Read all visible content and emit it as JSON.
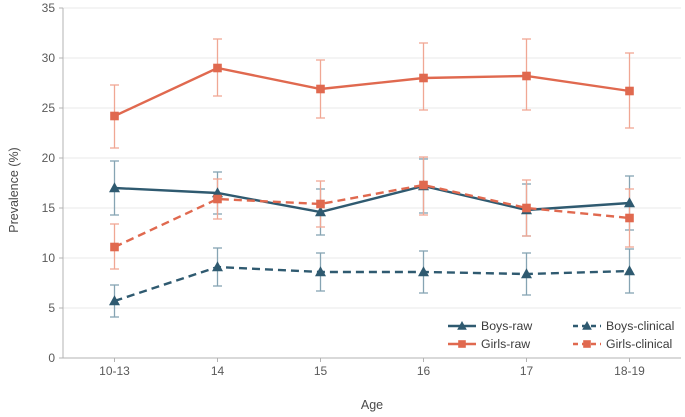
{
  "chart_data": {
    "type": "line",
    "title": "",
    "xlabel": "Age",
    "ylabel": "Prevalence (%)",
    "categories": [
      "10-13",
      "14",
      "15",
      "16",
      "17",
      "18-19"
    ],
    "ylim": [
      0,
      35
    ],
    "yticks": [
      0,
      5,
      10,
      15,
      20,
      25,
      30,
      35
    ],
    "grid": true,
    "error_bars": true,
    "legend": {
      "position": "inside-bottom-right",
      "columns": 2,
      "entries": [
        "Boys-raw",
        "Girls-raw",
        "Boys-clinical",
        "Girls-clinical"
      ]
    },
    "colors": {
      "boys": "#2f5a70",
      "girls": "#e0694f",
      "boys_error": "#86a4b3",
      "girls_error": "#f0a794",
      "gridline": "#eaeaea",
      "axis": "#b3b3b3",
      "tick_text": "#595959",
      "legend_text": "#3c3c3c"
    },
    "series": [
      {
        "name": "Boys-raw",
        "color": "#2f5a70",
        "err_color": "#86a4b3",
        "line": "solid",
        "marker": "triangle",
        "values": [
          17.0,
          16.5,
          14.6,
          17.2,
          14.8,
          15.5
        ],
        "err_low": [
          14.3,
          14.4,
          12.3,
          14.5,
          12.2,
          12.8
        ],
        "err_high": [
          19.7,
          18.6,
          16.9,
          19.9,
          17.4,
          18.2
        ]
      },
      {
        "name": "Girls-raw",
        "color": "#e0694f",
        "err_color": "#f0a794",
        "line": "solid",
        "marker": "square",
        "values": [
          24.2,
          29.0,
          26.9,
          28.0,
          28.2,
          26.7
        ],
        "err_low": [
          21.0,
          26.2,
          24.0,
          24.8,
          24.8,
          23.0
        ],
        "err_high": [
          27.3,
          31.9,
          29.8,
          31.5,
          31.9,
          30.5
        ]
      },
      {
        "name": "Boys-clinical",
        "color": "#2f5a70",
        "err_color": "#86a4b3",
        "line": "dashed",
        "marker": "triangle",
        "values": [
          5.7,
          9.1,
          8.6,
          8.6,
          8.4,
          8.7
        ],
        "err_low": [
          4.1,
          7.2,
          6.7,
          6.5,
          6.3,
          6.5
        ],
        "err_high": [
          7.3,
          11.0,
          10.5,
          10.7,
          10.5,
          10.9
        ]
      },
      {
        "name": "Girls-clinical",
        "color": "#e0694f",
        "err_color": "#f0a794",
        "line": "dashed",
        "marker": "square",
        "values": [
          11.1,
          15.9,
          15.4,
          17.3,
          15.0,
          14.0
        ],
        "err_low": [
          8.9,
          13.9,
          13.1,
          14.3,
          12.2,
          11.1
        ],
        "err_high": [
          13.4,
          17.9,
          17.7,
          20.1,
          17.8,
          16.9
        ]
      }
    ]
  }
}
